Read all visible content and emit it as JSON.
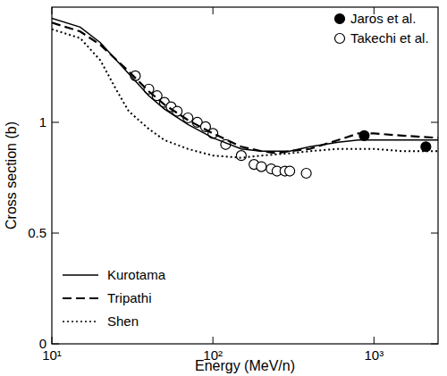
{
  "chart_data": {
    "type": "line",
    "x_label": "Energy (MeV/n)",
    "y_label": "Cross section (b)",
    "log": "x",
    "xlim": [
      10,
      2500
    ],
    "ylim": [
      0,
      1.52
    ],
    "xticks": [
      {
        "value": 10,
        "label": "10¹"
      },
      {
        "value": 100,
        "label": "10²"
      },
      {
        "value": 1000,
        "label": "10³"
      }
    ],
    "yticks": [
      0,
      0.5,
      1
    ],
    "legend": "upper right",
    "series": [
      {
        "name": "Jaros et al.",
        "type": "scatter",
        "marker": "filled-circle",
        "color": "#000000",
        "x": [
          870,
          2100
        ],
        "values": [
          0.94,
          0.89
        ]
      },
      {
        "name": "Takechi et al.",
        "type": "scatter",
        "marker": "open-circle",
        "color": "#000000",
        "x": [
          33,
          40,
          45,
          50,
          55,
          60,
          70,
          80,
          90,
          100,
          120,
          150,
          180,
          200,
          230,
          250,
          280,
          300,
          380
        ],
        "values": [
          1.21,
          1.15,
          1.12,
          1.09,
          1.07,
          1.05,
          1.02,
          1.0,
          0.98,
          0.95,
          0.9,
          0.85,
          0.81,
          0.8,
          0.79,
          0.78,
          0.78,
          0.78,
          0.77
        ]
      },
      {
        "name": "Kurotama",
        "type": "line",
        "line_style": "solid",
        "color": "#000000",
        "x": [
          10,
          15,
          20,
          30,
          40,
          50,
          70,
          100,
          150,
          200,
          300,
          400,
          600,
          800,
          1000,
          1500,
          2500
        ],
        "values": [
          1.47,
          1.43,
          1.36,
          1.22,
          1.12,
          1.06,
          0.99,
          0.93,
          0.88,
          0.87,
          0.87,
          0.89,
          0.91,
          0.92,
          0.92,
          0.92,
          0.92
        ]
      },
      {
        "name": "Tripathi",
        "type": "line",
        "line_style": "dashed",
        "color": "#000000",
        "x": [
          10,
          15,
          20,
          30,
          40,
          50,
          70,
          100,
          150,
          200,
          250,
          300,
          400,
          600,
          800,
          1000,
          1500,
          2500
        ],
        "values": [
          1.45,
          1.41,
          1.35,
          1.23,
          1.14,
          1.08,
          1.01,
          0.95,
          0.89,
          0.87,
          0.86,
          0.87,
          0.88,
          0.92,
          0.95,
          0.95,
          0.94,
          0.93
        ]
      },
      {
        "name": "Shen",
        "type": "line",
        "line_style": "dotted",
        "color": "#000000",
        "x": [
          10,
          15,
          20,
          25,
          30,
          40,
          50,
          70,
          100,
          150,
          200,
          300,
          400,
          600,
          1000,
          1500,
          2500
        ],
        "values": [
          1.42,
          1.38,
          1.28,
          1.15,
          1.05,
          0.97,
          0.92,
          0.88,
          0.85,
          0.84,
          0.85,
          0.86,
          0.87,
          0.88,
          0.88,
          0.87,
          0.87
        ]
      }
    ]
  }
}
